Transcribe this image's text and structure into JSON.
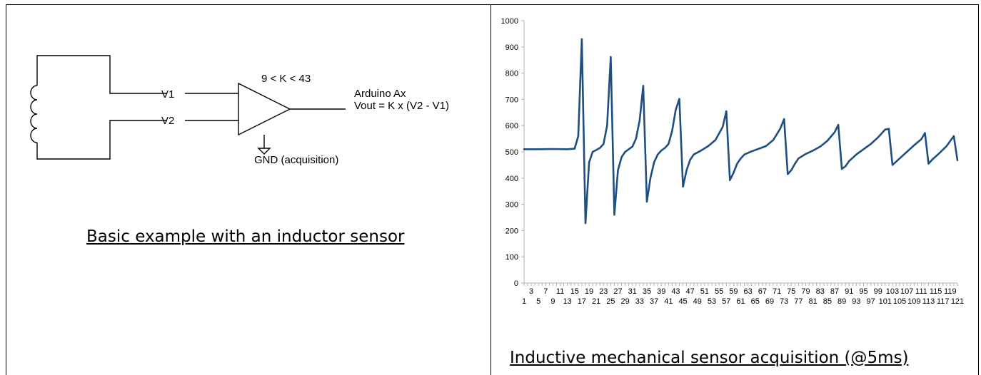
{
  "schematic": {
    "v1_label": "V1",
    "v2_label": "V2",
    "gain_label": "9 < K < 43",
    "output_line1": "Arduino Ax",
    "output_line2": "Vout = K x (V2 - V1)",
    "ground_label": "GND (acquisition)",
    "caption": "Basic example with an inductor sensor"
  },
  "chart_caption": "Inductive mechanical sensor acquisition (@5ms)",
  "chart_data": {
    "type": "line",
    "title": "",
    "xlabel": "",
    "ylabel": "",
    "ylim": [
      0,
      1000
    ],
    "yticks": [
      0,
      100,
      200,
      300,
      400,
      500,
      600,
      700,
      800,
      900,
      1000
    ],
    "xlim": [
      1,
      121
    ],
    "x_ticks_row_top": [
      "3",
      "7",
      "11",
      "15",
      "19",
      "23",
      "27",
      "31",
      "35",
      "39",
      "43",
      "47",
      "51",
      "55",
      "59",
      "63",
      "67",
      "71",
      "75",
      "79",
      "83",
      "87",
      "91",
      "95",
      "99",
      "103",
      "107",
      "111",
      "115",
      "119"
    ],
    "x_ticks_row_bottom": [
      "1",
      "5",
      "9",
      "13",
      "17",
      "21",
      "25",
      "29",
      "33",
      "37",
      "41",
      "45",
      "49",
      "53",
      "57",
      "61",
      "65",
      "69",
      "73",
      "77",
      "81",
      "85",
      "89",
      "93",
      "97",
      "101",
      "105",
      "109",
      "113",
      "117",
      "121"
    ],
    "line_color": "#1f4e80",
    "series": [
      {
        "points": [
          [
            1,
            510
          ],
          [
            5,
            510
          ],
          [
            9,
            511
          ],
          [
            13,
            510
          ],
          [
            15,
            512
          ],
          [
            16,
            560
          ],
          [
            17,
            930
          ],
          [
            18,
            228
          ],
          [
            19,
            460
          ],
          [
            20,
            500
          ],
          [
            21,
            507
          ],
          [
            22,
            515
          ],
          [
            23,
            530
          ],
          [
            24,
            600
          ],
          [
            25,
            862
          ],
          [
            26,
            260
          ],
          [
            27,
            430
          ],
          [
            28,
            480
          ],
          [
            29,
            500
          ],
          [
            30,
            510
          ],
          [
            31,
            520
          ],
          [
            32,
            550
          ],
          [
            33,
            620
          ],
          [
            34,
            752
          ],
          [
            35,
            310
          ],
          [
            36,
            400
          ],
          [
            37,
            460
          ],
          [
            38,
            490
          ],
          [
            39,
            505
          ],
          [
            40,
            515
          ],
          [
            41,
            530
          ],
          [
            42,
            580
          ],
          [
            43,
            660
          ],
          [
            44,
            702
          ],
          [
            45,
            367
          ],
          [
            46,
            430
          ],
          [
            47,
            470
          ],
          [
            48,
            490
          ],
          [
            50,
            505
          ],
          [
            52,
            522
          ],
          [
            54,
            545
          ],
          [
            56,
            595
          ],
          [
            57,
            655
          ],
          [
            58,
            392
          ],
          [
            59,
            420
          ],
          [
            60,
            455
          ],
          [
            61,
            475
          ],
          [
            62,
            490
          ],
          [
            64,
            502
          ],
          [
            66,
            512
          ],
          [
            68,
            522
          ],
          [
            70,
            545
          ],
          [
            72,
            590
          ],
          [
            73,
            625
          ],
          [
            74,
            415
          ],
          [
            75,
            430
          ],
          [
            76,
            455
          ],
          [
            77,
            475
          ],
          [
            79,
            492
          ],
          [
            81,
            505
          ],
          [
            83,
            520
          ],
          [
            85,
            542
          ],
          [
            87,
            575
          ],
          [
            88,
            603
          ],
          [
            89,
            435
          ],
          [
            90,
            445
          ],
          [
            91,
            465
          ],
          [
            93,
            490
          ],
          [
            95,
            510
          ],
          [
            97,
            530
          ],
          [
            99,
            555
          ],
          [
            101,
            585
          ],
          [
            102,
            588
          ],
          [
            103,
            450
          ],
          [
            105,
            475
          ],
          [
            107,
            500
          ],
          [
            109,
            525
          ],
          [
            111,
            548
          ],
          [
            112,
            572
          ],
          [
            113,
            455
          ],
          [
            114,
            470
          ],
          [
            116,
            495
          ],
          [
            118,
            522
          ],
          [
            120,
            560
          ],
          [
            121,
            468
          ]
        ]
      }
    ]
  }
}
